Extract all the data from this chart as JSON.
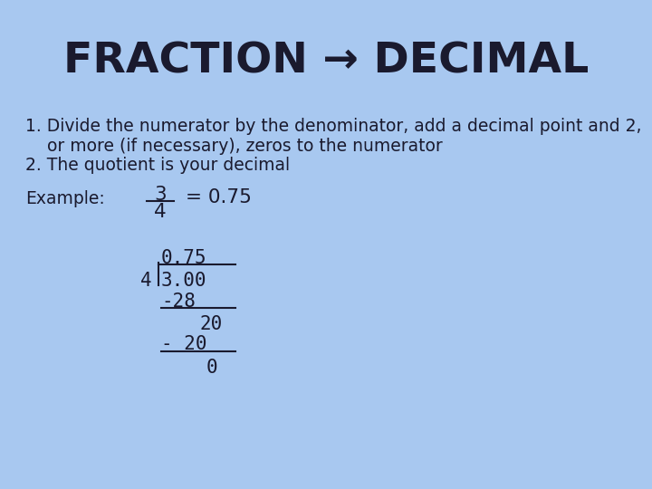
{
  "background_color": "#a8c8f0",
  "title": "FRACTION → DECIMAL",
  "title_fontsize": 34,
  "body_color": "#1a1a2e",
  "text_fontsize": 13.5,
  "mono_fontsize": 15,
  "step1_line1": "1. Divide the numerator by the denominator, add a decimal point and 2,",
  "step1_line2": "    or more (if necessary), zeros to the numerator",
  "step2": "2. The quotient is your decimal",
  "example_label": "Example:",
  "fraction_num": "3",
  "fraction_den": "4",
  "fraction_result": "= 0.75"
}
